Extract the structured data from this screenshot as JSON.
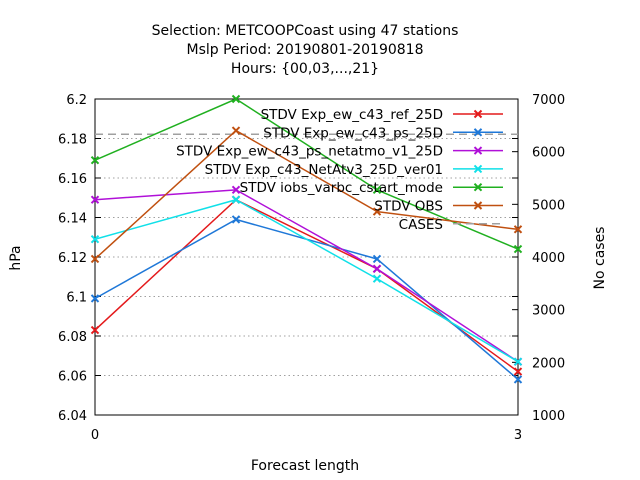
{
  "chart_data": {
    "type": "line",
    "title_lines": [
      "Selection: METCOOPCoast using    47 stations",
      "Mslp   Period: 20190801-20190818",
      "Hours: {00,03,...,21}"
    ],
    "xlabel": "Forecast length",
    "ylabel": "hPa",
    "y2label": "No cases",
    "x": [
      0,
      3
    ],
    "xlim": [
      0,
      3
    ],
    "xticks": [
      "0",
      "3"
    ],
    "ylim": [
      6.04,
      6.2
    ],
    "yticks": [
      "6.04",
      "6.06",
      "6.08",
      "6.1",
      "6.12",
      "6.14",
      "6.16",
      "6.18",
      "6.2"
    ],
    "y2lim": [
      1000,
      7000
    ],
    "y2ticks": [
      "1000",
      "2000",
      "3000",
      "4000",
      "5000",
      "6000",
      "7000"
    ],
    "grid": true,
    "legend_position": "top-right",
    "series": [
      {
        "name": "STDV Exp_ew_c43_ref_25D",
        "color": "#e41a1c",
        "x": [
          0,
          1,
          2,
          3
        ],
        "values": [
          6.083,
          6.149,
          6.114,
          6.062
        ]
      },
      {
        "name": "STDV Exp_ew_c43_ps_25D",
        "color": "#1f78d8",
        "x": [
          0,
          1,
          2,
          3
        ],
        "values": [
          6.099,
          6.139,
          6.119,
          6.058
        ]
      },
      {
        "name": "STDV Exp_ew_c43_ps_netatmo_v1_25D",
        "color": "#b010d8",
        "x": [
          0,
          1,
          2,
          3
        ],
        "values": [
          6.149,
          6.154,
          6.114,
          6.067
        ]
      },
      {
        "name": "STDV Exp_c43_NetAtv3_25D_ver01",
        "color": "#10e0e8",
        "x": [
          0,
          1,
          2,
          3
        ],
        "values": [
          6.129,
          6.149,
          6.109,
          6.067
        ]
      },
      {
        "name": "STDV iobs_varbc_cstart_mode",
        "color": "#20b020",
        "x": [
          0,
          1,
          2,
          3
        ],
        "values": [
          6.169,
          6.2,
          6.154,
          6.124
        ]
      },
      {
        "name": "STDV OBS",
        "color": "#c05010",
        "x": [
          0,
          1,
          2,
          3
        ],
        "values": [
          6.119,
          6.184,
          6.143,
          6.134
        ]
      }
    ],
    "cases": {
      "name": "CASES",
      "color": "#a0a0a0",
      "x": [
        0,
        3
      ],
      "values": [
        6330,
        6330
      ]
    }
  }
}
